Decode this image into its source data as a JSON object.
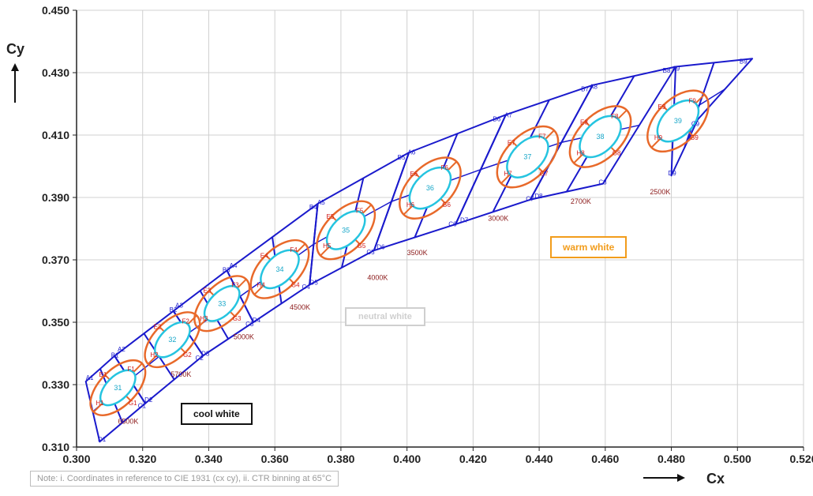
{
  "chart_data": {
    "type": "scatter",
    "title": "",
    "xlabel": "Cx",
    "ylabel": "Cy",
    "xlim": [
      0.3,
      0.52
    ],
    "ylim": [
      0.31,
      0.45
    ],
    "xticks": [
      "0.300",
      "0.320",
      "0.340",
      "0.360",
      "0.380",
      "0.400",
      "0.420",
      "0.440",
      "0.460",
      "0.480",
      "0.500",
      "0.520"
    ],
    "yticks": [
      "0.310",
      "0.330",
      "0.350",
      "0.370",
      "0.390",
      "0.410",
      "0.430",
      "0.450"
    ],
    "grid": true,
    "colors": {
      "bins": "#1a1acc",
      "outer_ellipse": "#e8692a",
      "inner_ellipse": "#25c4e0",
      "axis": "#222222",
      "grid": "#d0d0d0"
    },
    "groups": [
      {
        "index": 1,
        "label": "31",
        "center": [
          0.3125,
          0.329
        ],
        "outer": [
          0.0055,
          0.011
        ],
        "inner": [
          0.0035,
          0.007
        ],
        "bins": [
          "A1",
          "B1",
          "C1",
          "D1"
        ],
        "sub": [
          "E1",
          "F1",
          "G1",
          "H1"
        ],
        "corners": {
          "A": [
            0.3028,
            0.331
          ],
          "B": [
            0.3115,
            0.3392
          ],
          "C": [
            0.3208,
            0.324
          ],
          "D": [
            0.307,
            0.3117
          ]
        }
      },
      {
        "index": 2,
        "label": "32",
        "center": [
          0.329,
          0.3444
        ],
        "outer": [
          0.0055,
          0.011
        ],
        "inner": [
          0.0035,
          0.007
        ],
        "bins": [
          "A2",
          "B2",
          "C2",
          "D2"
        ],
        "sub": [
          "E2",
          "F2",
          "G2",
          "H2"
        ],
        "corners": {
          "A": [
            0.3115,
            0.3392
          ],
          "B": [
            0.3293,
            0.3536
          ],
          "C": [
            0.3383,
            0.3393
          ],
          "D": [
            0.3208,
            0.324
          ]
        }
      },
      {
        "index": 3,
        "label": "33",
        "center": [
          0.344,
          0.356
        ],
        "outer": [
          0.0055,
          0.011
        ],
        "inner": [
          0.0035,
          0.007
        ],
        "bins": [
          "A3",
          "B3",
          "C3",
          "D3"
        ],
        "sub": [
          "E3",
          "F3",
          "G3",
          "H3"
        ],
        "corners": {
          "A": [
            0.3293,
            0.3536
          ],
          "B": [
            0.3455,
            0.3666
          ],
          "C": [
            0.3535,
            0.35
          ],
          "D": [
            0.3383,
            0.3393
          ]
        }
      },
      {
        "index": 4,
        "label": "34",
        "center": [
          0.3615,
          0.367
        ],
        "outer": [
          0.006,
          0.0115
        ],
        "inner": [
          0.004,
          0.0075
        ],
        "bins": [
          "A4",
          "B4",
          "C4",
          "D4"
        ],
        "sub": [
          "E4",
          "F4",
          "G4",
          "H4"
        ],
        "corners": {
          "A": [
            0.3455,
            0.3666
          ],
          "B": [
            0.373,
            0.388
          ],
          "C": [
            0.3705,
            0.362
          ],
          "D": [
            0.3535,
            0.35
          ]
        }
      },
      {
        "index": 5,
        "label": "35",
        "center": [
          0.3815,
          0.3795
        ],
        "outer": [
          0.006,
          0.0115
        ],
        "inner": [
          0.004,
          0.0075
        ],
        "bins": [
          "A5",
          "B5",
          "C5",
          "D5"
        ],
        "sub": [
          "E5",
          "F5",
          "G5",
          "H5"
        ],
        "corners": {
          "A": [
            0.373,
            0.388
          ],
          "B": [
            0.4006,
            0.4044
          ],
          "C": [
            0.39,
            0.373
          ],
          "D": [
            0.3705,
            0.362
          ]
        }
      },
      {
        "index": 6,
        "label": "36",
        "center": [
          0.407,
          0.393
        ],
        "outer": [
          0.0065,
          0.012
        ],
        "inner": [
          0.0045,
          0.008
        ],
        "bins": [
          "A6",
          "B6",
          "C6",
          "D6"
        ],
        "sub": [
          "E6",
          "F6",
          "G6",
          "H6"
        ],
        "corners": {
          "A": [
            0.4006,
            0.4044
          ],
          "B": [
            0.4299,
            0.4165
          ],
          "C": [
            0.4147,
            0.3814
          ],
          "D": [
            0.39,
            0.373
          ]
        }
      },
      {
        "index": 7,
        "label": "37",
        "center": [
          0.4365,
          0.403
        ],
        "outer": [
          0.0065,
          0.012
        ],
        "inner": [
          0.0045,
          0.008
        ],
        "bins": [
          "A7",
          "B7",
          "C7",
          "D7"
        ],
        "sub": [
          "E7",
          "F7",
          "G7",
          "H7"
        ],
        "corners": {
          "A": [
            0.4299,
            0.4165
          ],
          "B": [
            0.4562,
            0.426
          ],
          "C": [
            0.4373,
            0.3893
          ],
          "D": [
            0.4147,
            0.3814
          ]
        }
      },
      {
        "index": 8,
        "label": "38",
        "center": [
          0.4585,
          0.4095
        ],
        "outer": [
          0.0065,
          0.012
        ],
        "inner": [
          0.0045,
          0.008
        ],
        "bins": [
          "A8",
          "B8",
          "C8",
          "D8"
        ],
        "sub": [
          "E8",
          "F8",
          "G8",
          "H8"
        ],
        "corners": {
          "A": [
            0.4562,
            0.426
          ],
          "B": [
            0.4813,
            0.4319
          ],
          "C": [
            0.4593,
            0.3944
          ],
          "D": [
            0.4373,
            0.3893
          ]
        }
      },
      {
        "index": 9,
        "label": "39",
        "center": [
          0.482,
          0.4145
        ],
        "outer": [
          0.0065,
          0.012
        ],
        "inner": [
          0.0045,
          0.008
        ],
        "bins": [
          "A9",
          "B9",
          "C9",
          "D9"
        ],
        "sub": [
          "E9",
          "F9",
          "G9",
          "H9"
        ],
        "corners": {
          "A": [
            0.4813,
            0.4319
          ],
          "B": [
            0.5045,
            0.4345
          ],
          "C": [
            0.488,
            0.415
          ],
          "D": [
            0.48,
            0.397
          ]
        }
      }
    ],
    "cct_labels": [
      {
        "text": "6500K",
        "x": 0.3125,
        "y": 0.3175
      },
      {
        "text": "5700K",
        "x": 0.3285,
        "y": 0.3325
      },
      {
        "text": "5000K",
        "x": 0.3475,
        "y": 0.3445
      },
      {
        "text": "4500K",
        "x": 0.3645,
        "y": 0.354
      },
      {
        "text": "4000K",
        "x": 0.388,
        "y": 0.3635
      },
      {
        "text": "3500K",
        "x": 0.4,
        "y": 0.3715
      },
      {
        "text": "3000K",
        "x": 0.4245,
        "y": 0.3825
      },
      {
        "text": "2700K",
        "x": 0.4495,
        "y": 0.388
      },
      {
        "text": "2500K",
        "x": 0.4735,
        "y": 0.391
      }
    ]
  },
  "annotations": {
    "cool": "cool white",
    "neutral": "neutral white",
    "warm": "warm white"
  },
  "note": "Note: i. Coordinates in reference  to CIE 1931 (cx cy), ii. CTR binning at 65°C"
}
